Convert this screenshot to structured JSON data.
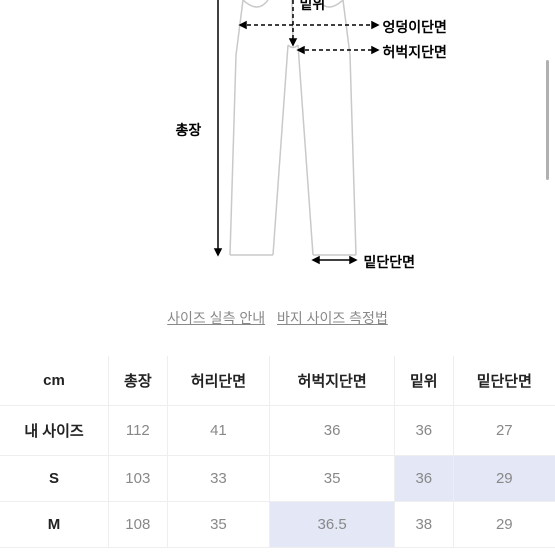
{
  "diagram": {
    "labels": {
      "rise": "밑위",
      "hip": "엉덩이단면",
      "thigh": "허벅지단면",
      "length": "총장",
      "hem": "밑단단면"
    },
    "stroke": "#c9c9c9",
    "dash_stroke": "#000000"
  },
  "links": {
    "guide": "사이즈 실측 안내",
    "how": "바지 사이즈 측정법"
  },
  "table": {
    "unit": "cm",
    "columns": [
      "총장",
      "허리단면",
      "허벅지단면",
      "밑위",
      "밑단단면"
    ],
    "rows": [
      {
        "label": "내 사이즈",
        "values": [
          "112",
          "41",
          "36",
          "36",
          "27"
        ],
        "hl": []
      },
      {
        "label": "S",
        "values": [
          "103",
          "33",
          "35",
          "36",
          "29"
        ],
        "hl": [
          3,
          4
        ]
      },
      {
        "label": "M",
        "values": [
          "108",
          "35",
          "36.5",
          "38",
          "29"
        ],
        "hl": [
          2
        ]
      }
    ]
  }
}
